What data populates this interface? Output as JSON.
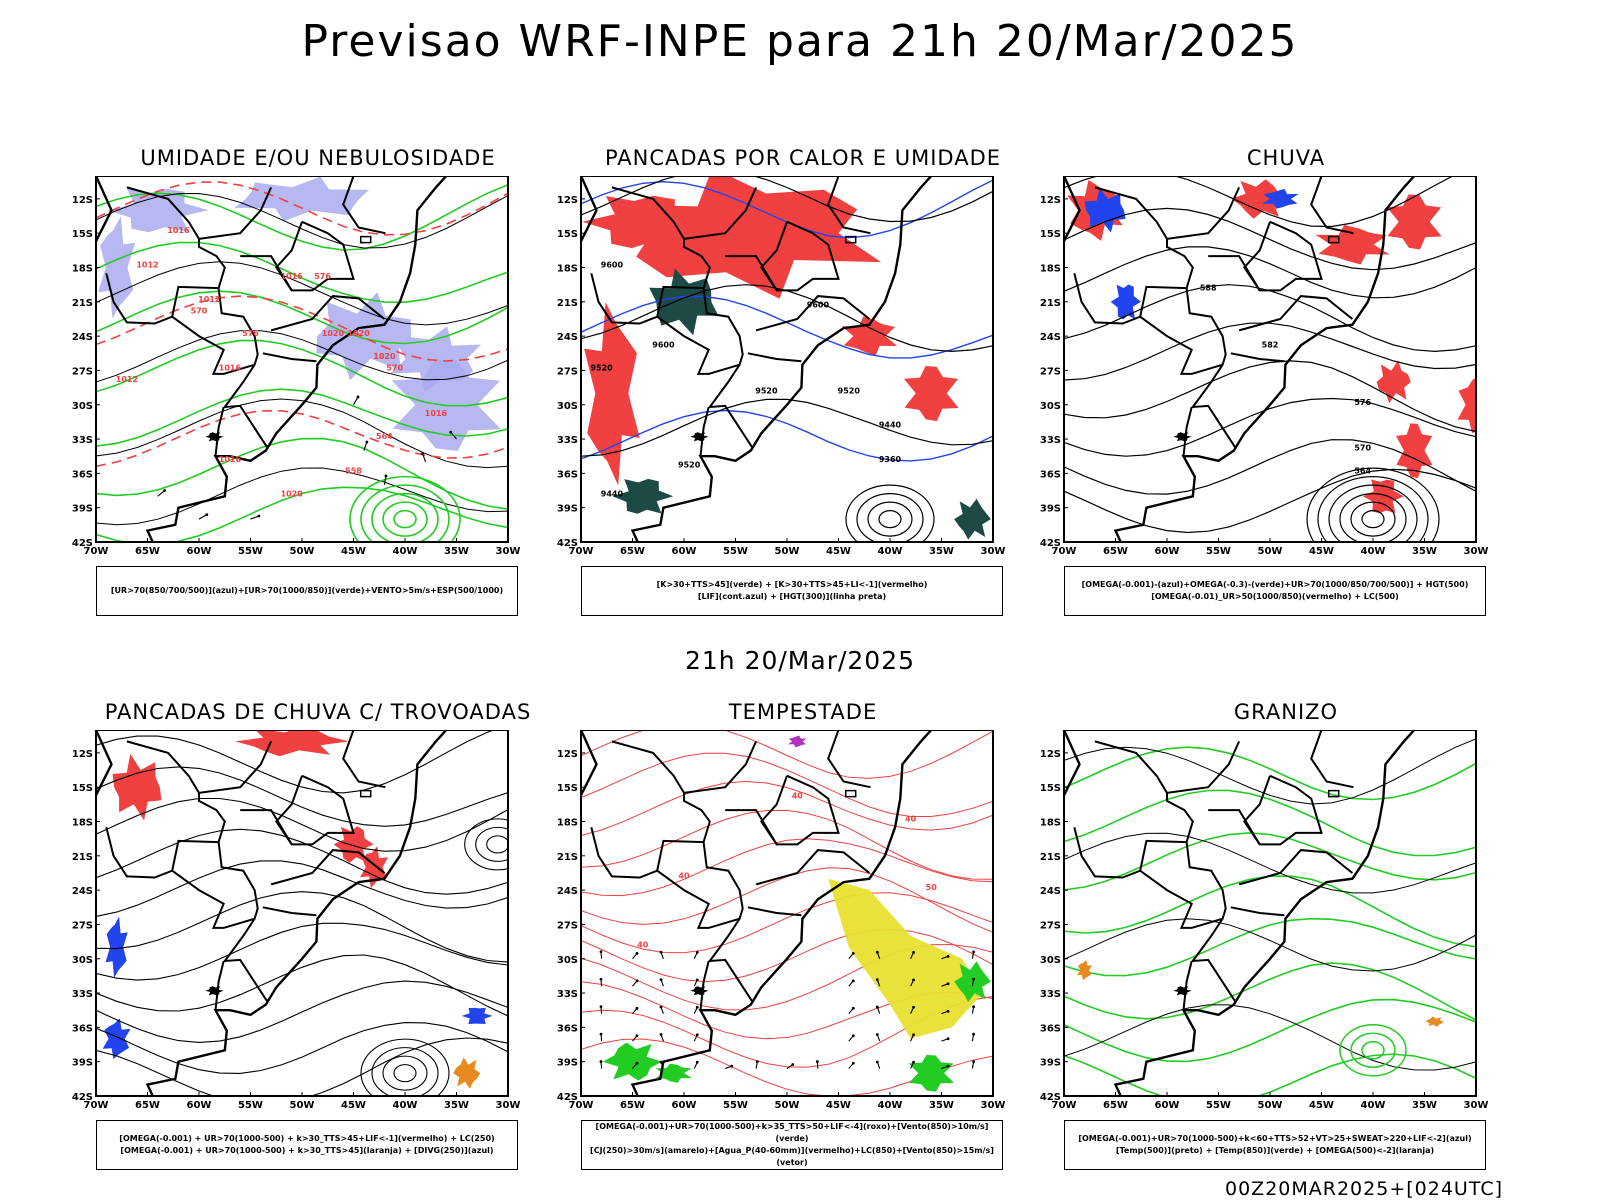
{
  "title": "Previsao WRF-INPE  para 21h 20/Mar/2025",
  "mid_date": "21h 20/Mar/2025",
  "footer": "00Z20MAR2025+[024UTC]",
  "axes": {
    "lat_labels": [
      "12S",
      "15S",
      "18S",
      "21S",
      "24S",
      "27S",
      "30S",
      "33S",
      "36S",
      "39S",
      "42S"
    ],
    "lon_labels": [
      "70W",
      "65W",
      "60W",
      "55W",
      "50W",
      "45W",
      "40W",
      "35W",
      "30W"
    ]
  },
  "colors": {
    "red": "#f04040",
    "green": "#22cc22",
    "blue": "#2244ee",
    "lavender": "#aaaaf0",
    "yellow": "#e8e030",
    "darkgreen": "#1e4a46",
    "orange": "#e88a20",
    "purple": "#b030c0"
  },
  "panels": [
    {
      "title": "UMIDADE E/OU NEBULOSIDADE",
      "legend": [
        "[UR>70(850/700/500)](azul)+[UR>70(1000/850)](verde)+VENTO>5m/s+ESP(500/1000)"
      ],
      "contour_labels": [
        "1016",
        "1012",
        "1012",
        "1016",
        "1020",
        "1020",
        "1016",
        "1012",
        "1016",
        "1016",
        "1020",
        "1020",
        "570",
        "576",
        "576",
        "570",
        "564",
        "558"
      ]
    },
    {
      "title": "PANCADAS POR CALOR E UMIDADE",
      "legend": [
        "[K>30+TTS>45](verde) + [K>30+TTS>45+LI<-1](vermelho)",
        "[LIF](cont.azul) + [HGT(300)](linha preta)"
      ],
      "contour_labels": [
        "9600",
        "9600",
        "9600",
        "9520",
        "9520",
        "9440",
        "9360",
        "9440",
        "9520",
        "9520"
      ]
    },
    {
      "title": "CHUVA",
      "legend": [
        "[OMEGA(-0.001)-(azul)+OMEGA(-0.3)-(verde)+UR>70(1000/850/700/500)] + HGT(500)",
        "[OMEGA(-0.01)_UR>50(1000/850)(vermelho) + LC(500)"
      ],
      "contour_labels": [
        "588",
        "582",
        "576",
        "570",
        "564"
      ]
    },
    {
      "title": "PANCADAS DE CHUVA C/ TROVOADAS",
      "legend": [
        "[OMEGA(-0.001) + UR>70(1000-500) + k>30_TTS>45+LIF<-1](vermelho) + LC(250)",
        "[OMEGA(-0.001) + UR>70(1000-500) + k>30_TTS>45](laranja) + [DIVG(250)](azul)"
      ],
      "contour_labels": []
    },
    {
      "title": "TEMPESTADE",
      "legend": [
        "[OMEGA(-0.001)+UR>70(1000-500)+k>35_TTS>50+LIF<-4](roxo)+[Vento(850)>10m/s](verde)",
        "[CJ(250)>30m/s](amarelo)+[Agua_P(40-60mm)](vermelho)+LC(850)+[Vento(850)>15m/s](vetor)"
      ],
      "contour_labels": [
        "40",
        "40",
        "40",
        "50",
        "40"
      ]
    },
    {
      "title": "GRANIZO",
      "legend": [
        "[OMEGA(-0.001)+UR>70(1000-500)+k<60+TTS>52+VT>25+SWEAT>220+LIF<-2](azul)",
        "[Temp(500)](preto) + [Temp(850)](verde) + [OMEGA(500)<-2](laranja)"
      ],
      "contour_labels": []
    }
  ]
}
